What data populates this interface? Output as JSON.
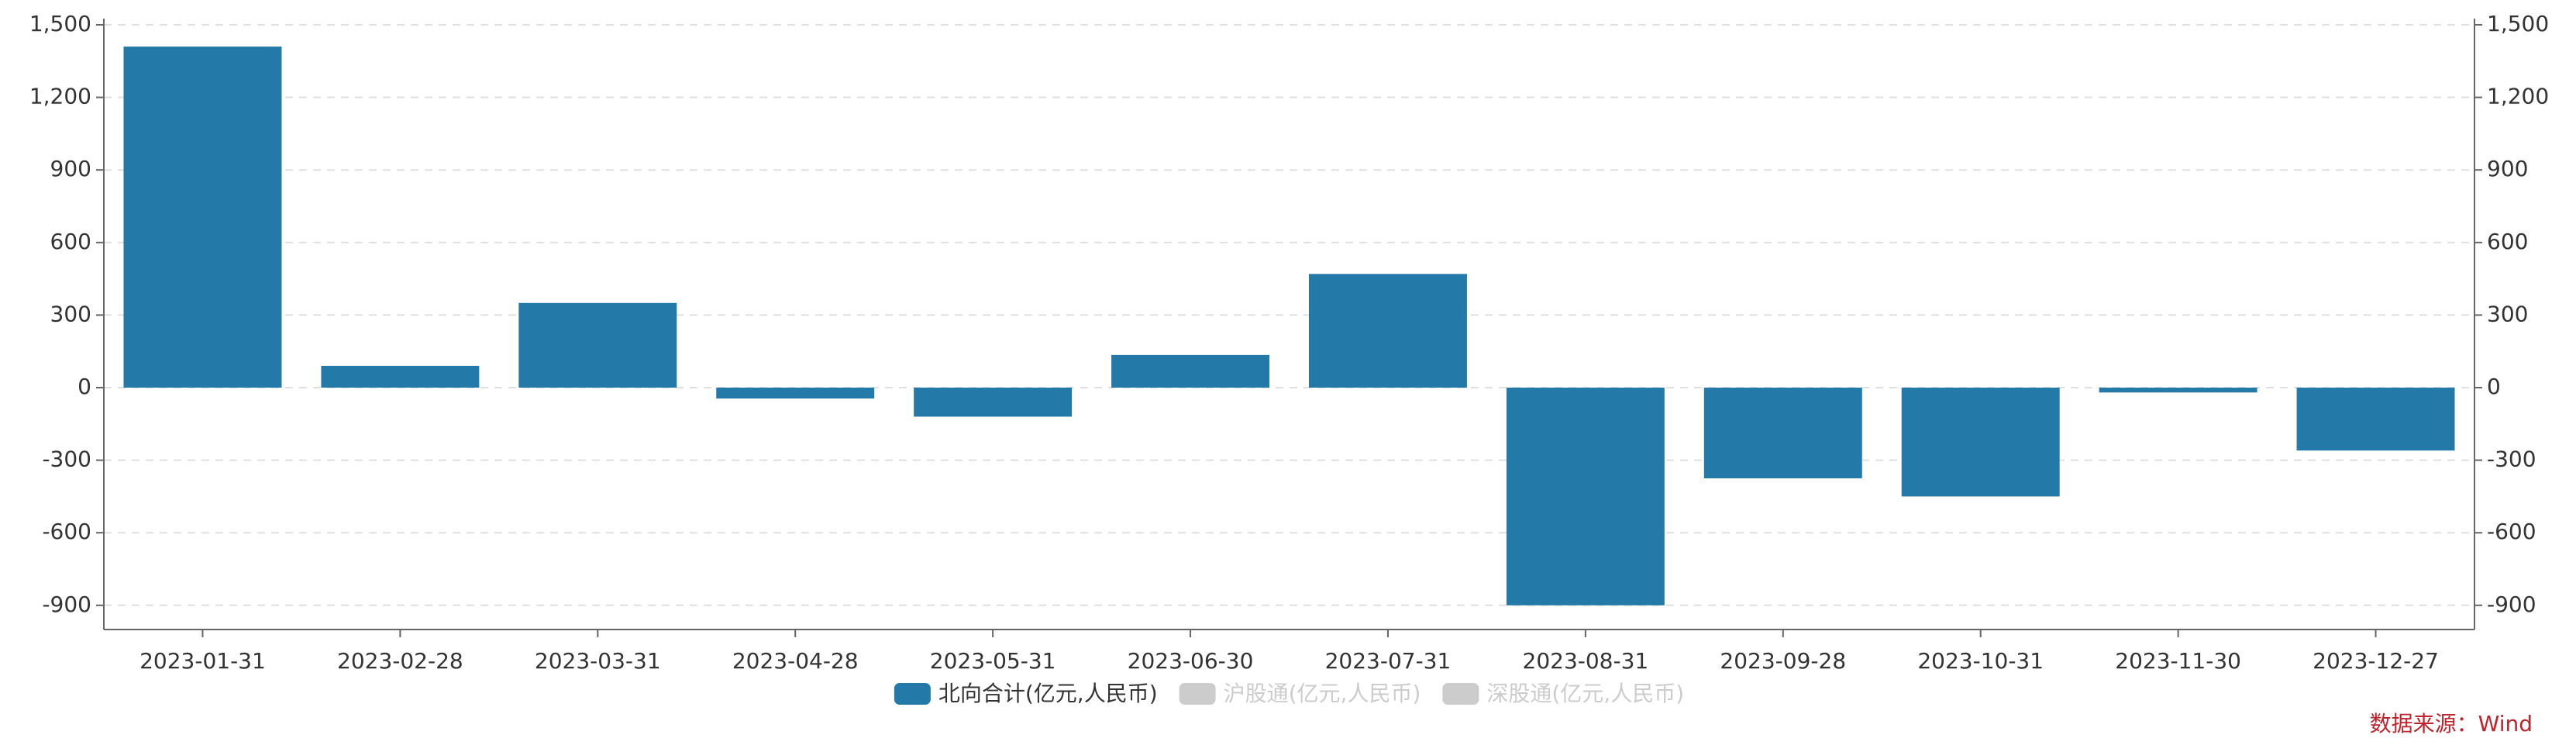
{
  "chart_data": {
    "type": "bar",
    "categories": [
      "2023-01-31",
      "2023-02-28",
      "2023-03-31",
      "2023-04-28",
      "2023-05-31",
      "2023-06-30",
      "2023-07-31",
      "2023-08-31",
      "2023-09-28",
      "2023-10-31",
      "2023-11-30",
      "2023-12-27"
    ],
    "series": [
      {
        "name": "北向合计(亿元,人民币)",
        "color": "#2379a7",
        "visible": true,
        "values": [
          1410,
          90,
          350,
          -45,
          -120,
          135,
          470,
          -900,
          -375,
          -450,
          -20,
          -260
        ]
      },
      {
        "name": "沪股通(亿元,人民币)",
        "color": "#cccccc",
        "visible": false
      },
      {
        "name": "深股通(亿元,人民币)",
        "color": "#cccccc",
        "visible": false
      }
    ],
    "ylim": [
      -1000,
      1500
    ],
    "yticks": [
      -900,
      -600,
      -300,
      0,
      300,
      600,
      900,
      {
        "value": 1200,
        "label": "1,200"
      },
      {
        "value": 1500,
        "label": "1,500"
      }
    ],
    "y2lim": [
      -1000,
      1500
    ],
    "y2ticks": [
      -900,
      -600,
      -300,
      0,
      300,
      600,
      900,
      {
        "value": 1200,
        "label": "1,200"
      },
      {
        "value": 1500,
        "label": "1,500"
      }
    ],
    "grid": true,
    "legend": "bottom",
    "source": "数据来源：Wind",
    "source_color": "#c0232b"
  }
}
